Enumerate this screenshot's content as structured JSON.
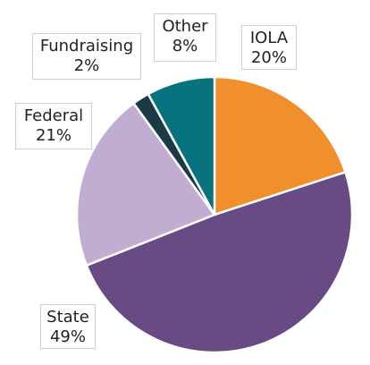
{
  "chart_data": {
    "type": "pie",
    "slices": [
      {
        "label": "IOLA",
        "value": 20,
        "value_label": "20%",
        "color": "#F0902D"
      },
      {
        "label": "State",
        "value": 49,
        "value_label": "49%",
        "color": "#684A85"
      },
      {
        "label": "Federal",
        "value": 21,
        "value_label": "21%",
        "color": "#C1ADD1"
      },
      {
        "label": "Fundraising",
        "value": 2,
        "value_label": "2%",
        "color": "#1B3A45"
      },
      {
        "label": "Other",
        "value": 8,
        "value_label": "8%",
        "color": "#08737F"
      }
    ],
    "start_angle": "12 o'clock",
    "direction": "clockwise",
    "legend": "none",
    "labels": "callouts"
  }
}
